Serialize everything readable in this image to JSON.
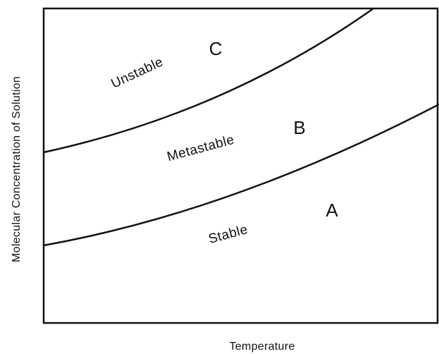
{
  "diagram": {
    "y_axis_label": "Molecular Concentration of Solution",
    "x_axis_label": "Temperature",
    "regions": [
      {
        "label": "Unstable",
        "letter": "C"
      },
      {
        "label": "Metastable",
        "letter": "B"
      },
      {
        "label": "Stable",
        "letter": "A"
      }
    ]
  }
}
